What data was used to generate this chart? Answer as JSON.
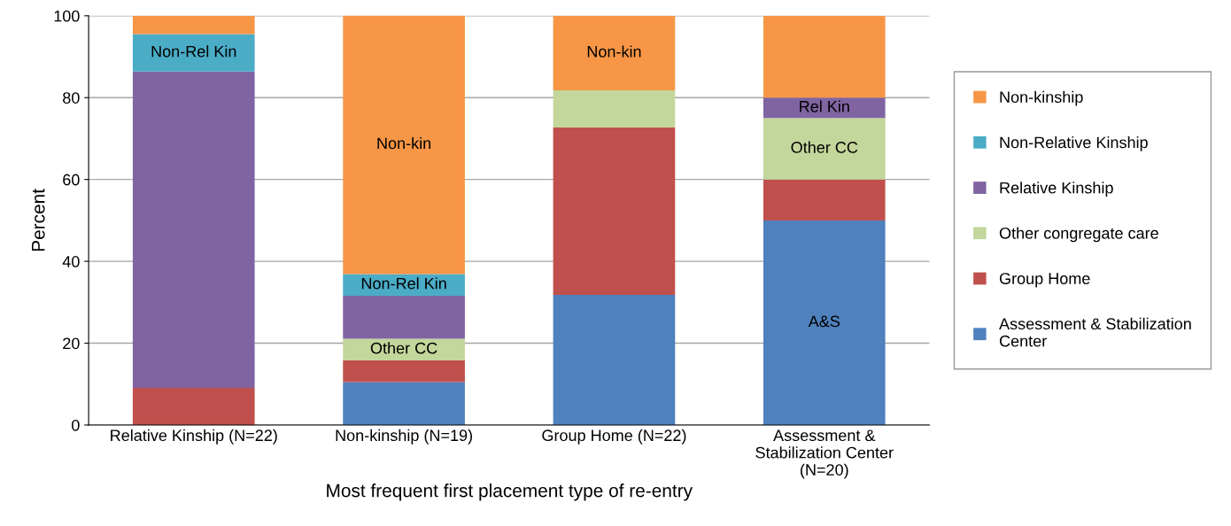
{
  "chart_data": {
    "type": "bar",
    "stacked": true,
    "xlabel": "Most frequent first placement type of re-entry",
    "ylabel": "Percent",
    "categories": [
      "Relative Kinship (N=22)",
      "Non-kinship (N=19)",
      "Group Home (N=22)",
      "Assessment &\nStabilization Center\n(N=20)"
    ],
    "series": [
      {
        "name": "Assessment & Stabilization\nCenter",
        "color": "#4f81bd",
        "values": [
          0,
          10.5,
          31.8,
          50
        ],
        "value_labels": [
          null,
          null,
          null,
          "A&S"
        ]
      },
      {
        "name": "Group Home",
        "color": "#c0504d",
        "values": [
          9.1,
          5.3,
          40.9,
          10
        ]
      },
      {
        "name": "Other congregate care",
        "color": "#c3d69b",
        "values": [
          0,
          5.3,
          9.1,
          15
        ],
        "value_labels": [
          null,
          "Other CC",
          null,
          "Other CC"
        ]
      },
      {
        "name": "Relative Kinship",
        "color": "#8064a2",
        "values": [
          77.3,
          10.5,
          0,
          5
        ],
        "value_labels": [
          null,
          null,
          null,
          "Rel Kin"
        ]
      },
      {
        "name": "Non-Relative Kinship",
        "color": "#4bacc6",
        "values": [
          9.1,
          5.3,
          0,
          0
        ],
        "value_labels": [
          "Non-Rel Kin",
          "Non-Rel Kin",
          null,
          null
        ]
      },
      {
        "name": "Non-kinship",
        "color": "#f79646",
        "values": [
          4.5,
          63.2,
          18.2,
          20
        ],
        "value_labels": [
          null,
          "Non-kin",
          "Non-kin",
          null
        ]
      }
    ],
    "ylim": [
      0,
      100
    ],
    "yticks": [
      0,
      20,
      40,
      60,
      80,
      100
    ],
    "grid": "y",
    "legend": "right"
  }
}
